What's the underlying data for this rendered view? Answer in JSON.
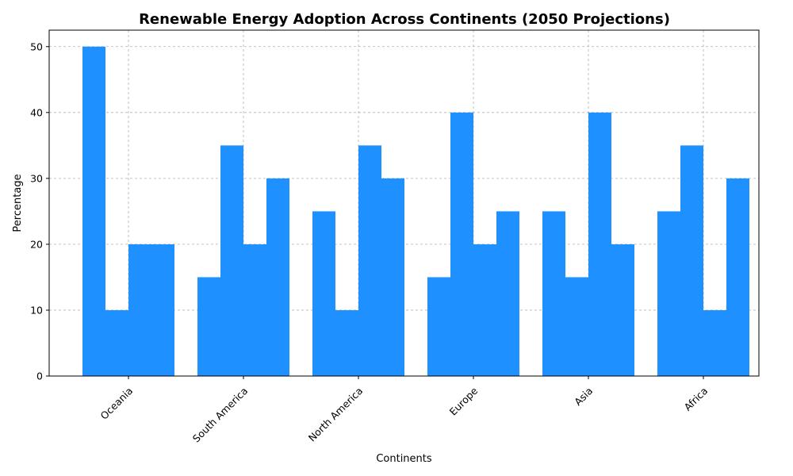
{
  "chart_data": {
    "type": "bar",
    "title": "Renewable Energy Adoption Across Continents (2050 Projections)",
    "xlabel": "Continents",
    "ylabel": "Percentage",
    "categories": [
      "Oceania",
      "South America",
      "North America",
      "Europe",
      "Asia",
      "Africa"
    ],
    "series": [
      {
        "values": [
          50,
          15,
          25,
          15,
          25,
          25
        ]
      },
      {
        "values": [
          10,
          35,
          10,
          40,
          15,
          35
        ]
      },
      {
        "values": [
          20,
          20,
          35,
          20,
          40,
          10
        ]
      },
      {
        "values": [
          20,
          30,
          30,
          25,
          20,
          30
        ]
      }
    ],
    "ylim": [
      0,
      52.5
    ],
    "yticks": [
      0,
      10,
      20,
      30,
      40,
      50
    ],
    "grid": true,
    "legend": false,
    "bar_color": "#1E90FF"
  }
}
